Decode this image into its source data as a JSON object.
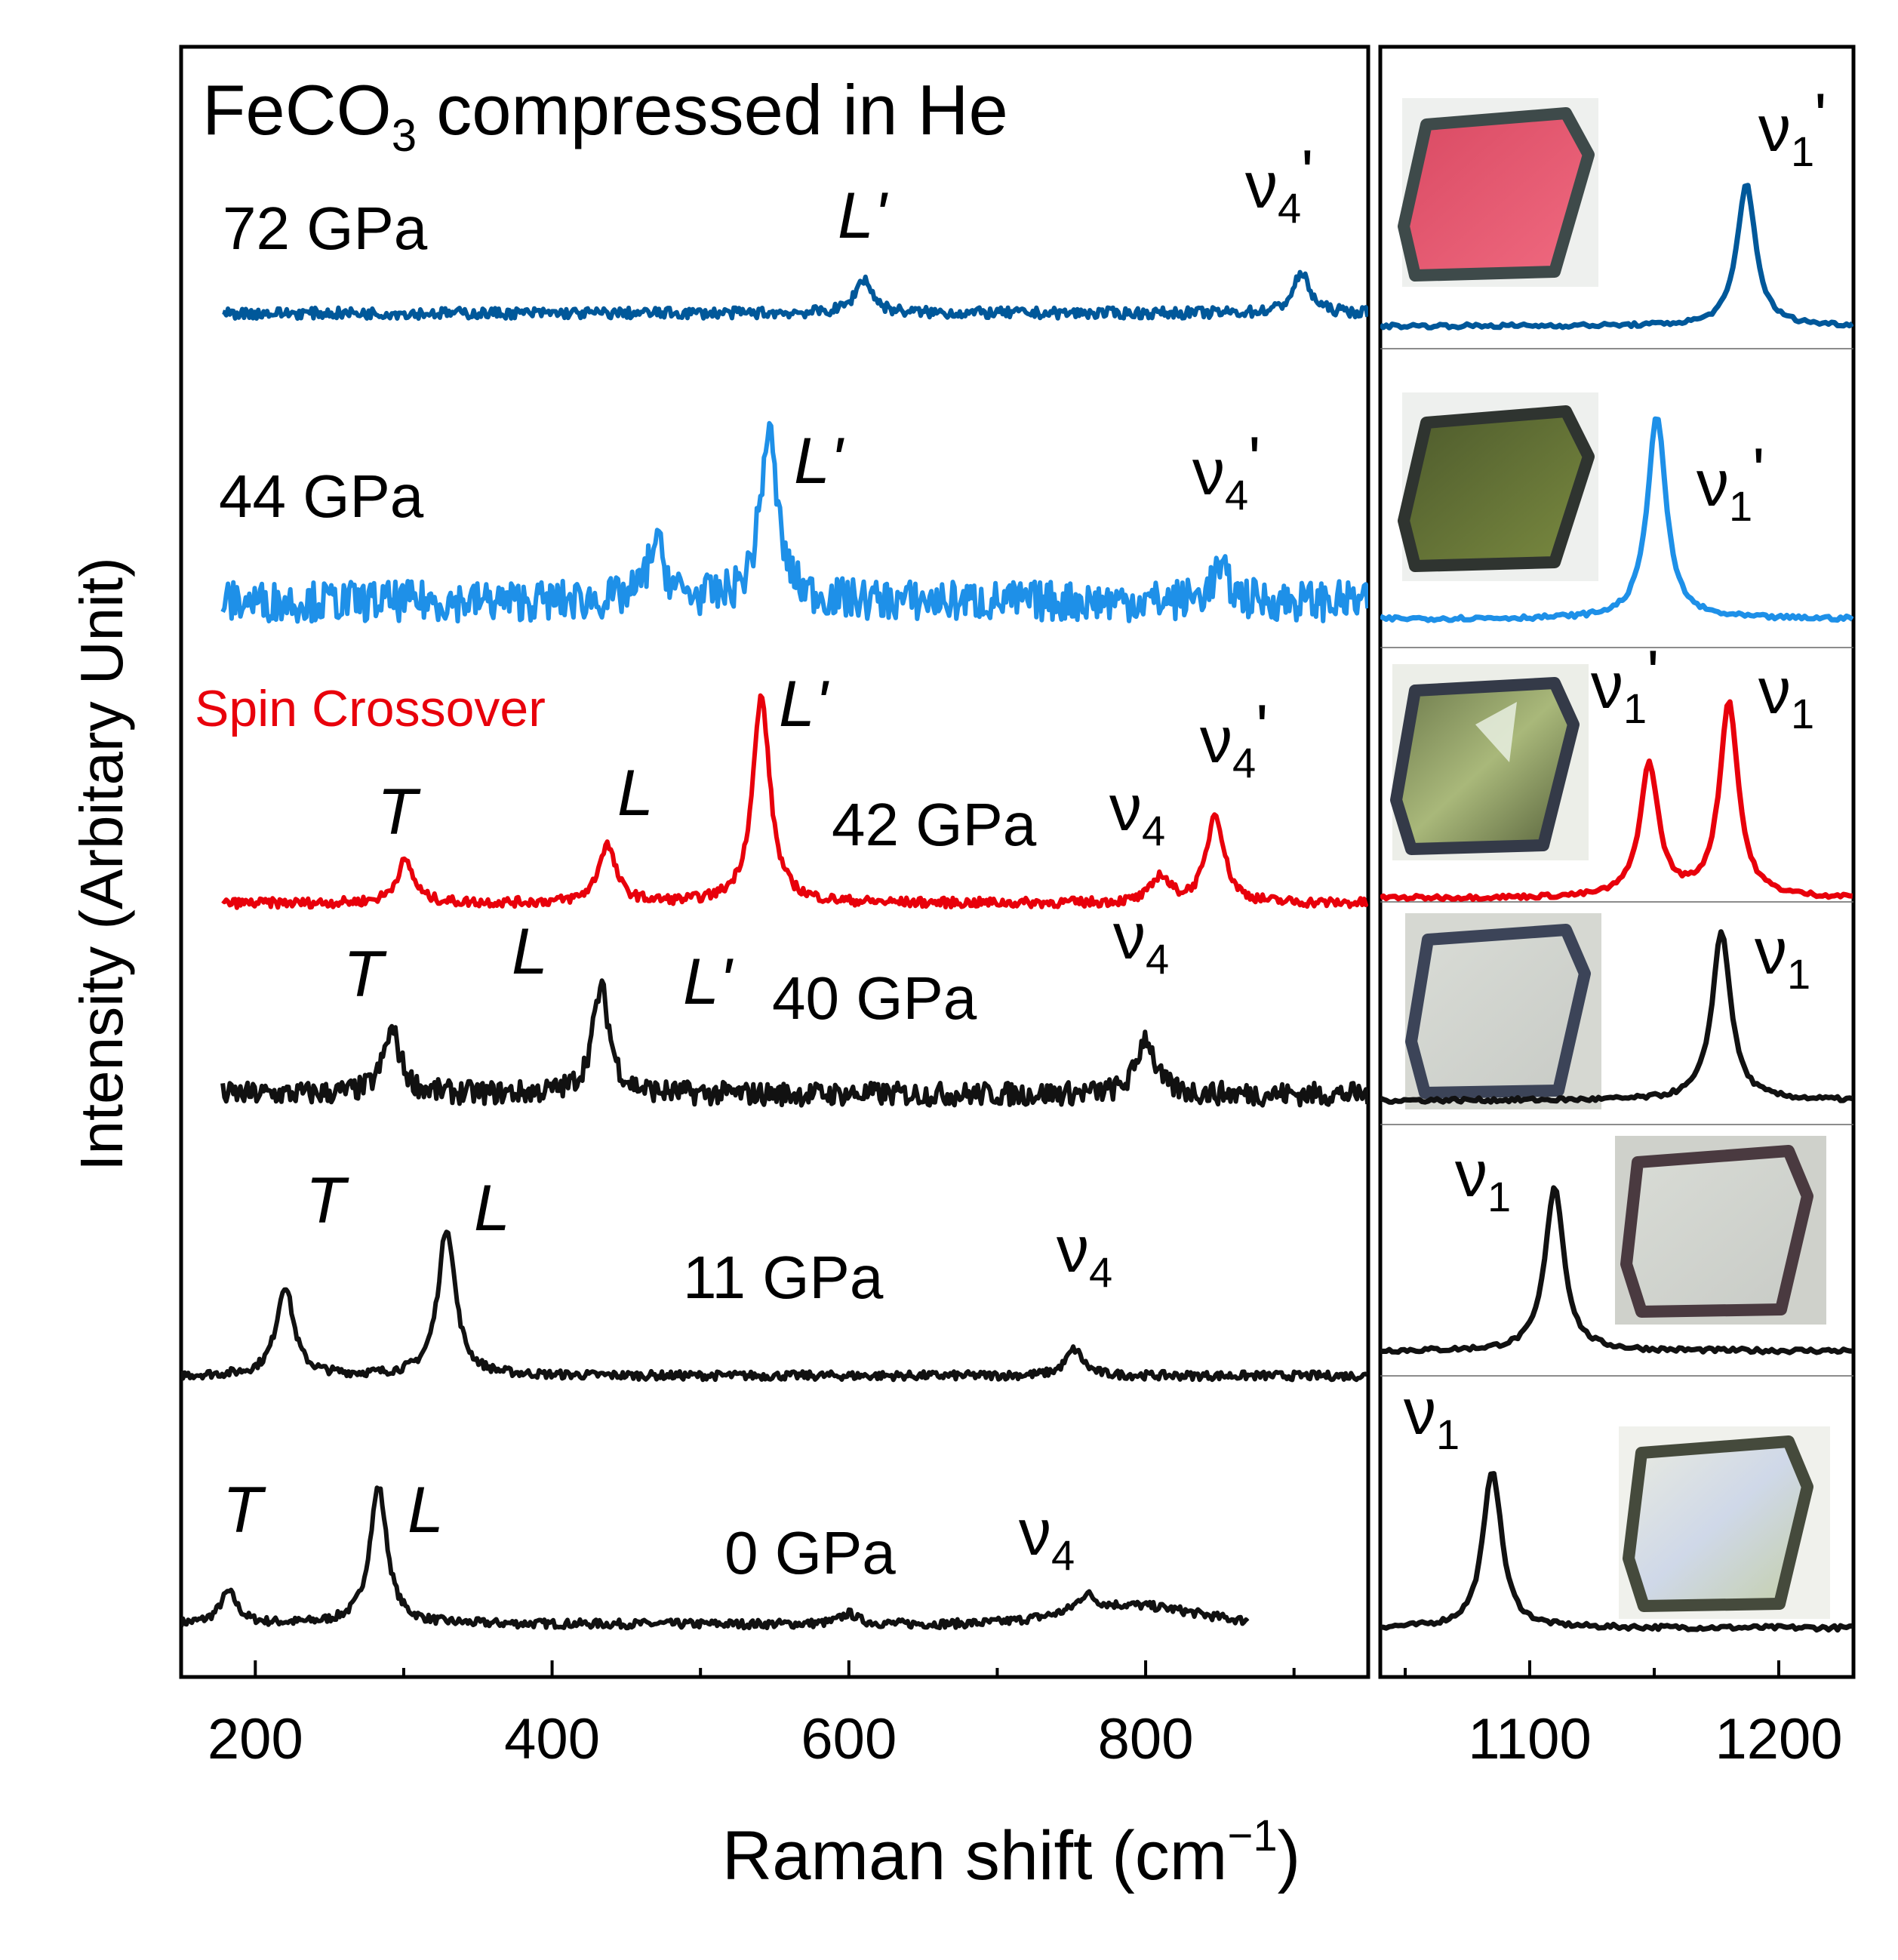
{
  "chart_data": {
    "type": "line",
    "title": "FeCO3 compressed in He",
    "title_main": "FeCO",
    "title_sub": "3",
    "title_rest": " compressed in He",
    "xlabel_main": "Raman shift (cm",
    "xlabel_sup": "−1",
    "xlabel_close": ")",
    "ylabel": "Intensity (Arbitary Unit)",
    "colors": {
      "black": "#111111",
      "red": "#e8000b",
      "light_blue": "#1e90e8",
      "dark_blue": "#00589a"
    },
    "note": "Spin Crossover",
    "left_panel": {
      "xlim": [
        150,
        950
      ],
      "xticks": [
        "200",
        "400",
        "600",
        "800"
      ],
      "xtick_values": [
        200,
        400,
        600,
        800
      ]
    },
    "right_panel": {
      "xlim": [
        1040,
        1230
      ],
      "xticks": [
        "1100",
        "1200"
      ],
      "xtick_values": [
        1100,
        1200
      ]
    },
    "series": [
      {
        "name": "0 GPa",
        "pressure_label": "0 GPa",
        "color": "#111111",
        "left_range": [
          150,
          870
        ],
        "right_range": [
          1040,
          1230
        ],
        "noise": 0.8,
        "peaks": [
          {
            "label": "T",
            "x": 182,
            "h": 6
          },
          {
            "label": "L",
            "x": 283,
            "h": 26
          },
          {
            "label": "",
            "x": 600,
            "h": 2
          },
          {
            "label": "ν4",
            "x": 760,
            "h": 3
          }
        ],
        "bumps": [
          {
            "x": 790,
            "h": 3.5,
            "w": 60
          }
        ],
        "right_peaks": [
          {
            "label": "ν1",
            "x": 1085,
            "h": 28
          }
        ]
      },
      {
        "name": "11 GPa",
        "pressure_label": "11 GPa",
        "color": "#111111",
        "left_range": [
          150,
          950
        ],
        "right_range": [
          1040,
          1230
        ],
        "noise": 0.8,
        "peaks": [
          {
            "label": "T",
            "x": 220,
            "h": 17
          },
          {
            "label": "L",
            "x": 329,
            "h": 28
          },
          {
            "label": "ν4",
            "x": 752,
            "h": 5
          }
        ],
        "bumps": [],
        "right_peaks": [
          {
            "label": "ν1",
            "x": 1110,
            "h": 30
          }
        ]
      },
      {
        "name": "40 GPa",
        "pressure_label": "40 GPa",
        "color": "#111111",
        "left_range": [
          178,
          950
        ],
        "right_range": [
          1040,
          1230
        ],
        "noise": 2.2,
        "peaks": [
          {
            "label": "T",
            "x": 292,
            "h": 12
          },
          {
            "label": "L",
            "x": 433,
            "h": 20
          },
          {
            "label": "L'",
            "x": 500,
            "h": 0
          },
          {
            "label": "ν4",
            "x": 800,
            "h": 11
          }
        ],
        "bumps": [],
        "right_peaks": [
          {
            "label": "ν1",
            "x": 1177,
            "h": 32
          }
        ]
      },
      {
        "name": "42 GPa",
        "pressure_label": "42 GPa",
        "color": "#e8000b",
        "left_range": [
          178,
          950
        ],
        "right_range": [
          1040,
          1230
        ],
        "noise": 0.9,
        "peaks": [
          {
            "label": "T",
            "x": 301,
            "h": 8
          },
          {
            "label": "L",
            "x": 437,
            "h": 11
          },
          {
            "label": "L'",
            "x": 541,
            "h": 39
          },
          {
            "label": "ν4",
            "x": 810,
            "h": 5
          },
          {
            "label": "ν4'",
            "x": 847,
            "h": 17
          }
        ],
        "bumps": [],
        "right_peaks": [
          {
            "label": "ν1'",
            "x": 1148,
            "h": 25
          },
          {
            "label": "ν1",
            "x": 1180,
            "h": 37
          }
        ]
      },
      {
        "name": "44 GPa",
        "pressure_label": "44 GPa",
        "color": "#1e90e8",
        "left_range": [
          178,
          950
        ],
        "right_range": [
          1040,
          1230
        ],
        "noise": 3.8,
        "peaks": [
          {
            "label": "",
            "x": 470,
            "h": 11
          },
          {
            "label": "L'",
            "x": 546,
            "h": 32
          },
          {
            "label": "ν4'",
            "x": 850,
            "h": 6
          }
        ],
        "bumps": [],
        "right_peaks": [
          {
            "label": "ν1'",
            "x": 1151,
            "h": 38
          }
        ]
      },
      {
        "name": "72 GPa",
        "pressure_label": "72 GPa",
        "color": "#00589a",
        "left_range": [
          178,
          950
        ],
        "right_range": [
          1040,
          1230
        ],
        "noise": 1.1,
        "peaks": [
          {
            "label": "L'",
            "x": 610,
            "h": 7
          },
          {
            "label": "ν4'",
            "x": 905,
            "h": 8
          }
        ],
        "bumps": [],
        "right_peaks": [
          {
            "label": "ν1'",
            "x": 1187,
            "h": 29
          }
        ]
      }
    ]
  }
}
